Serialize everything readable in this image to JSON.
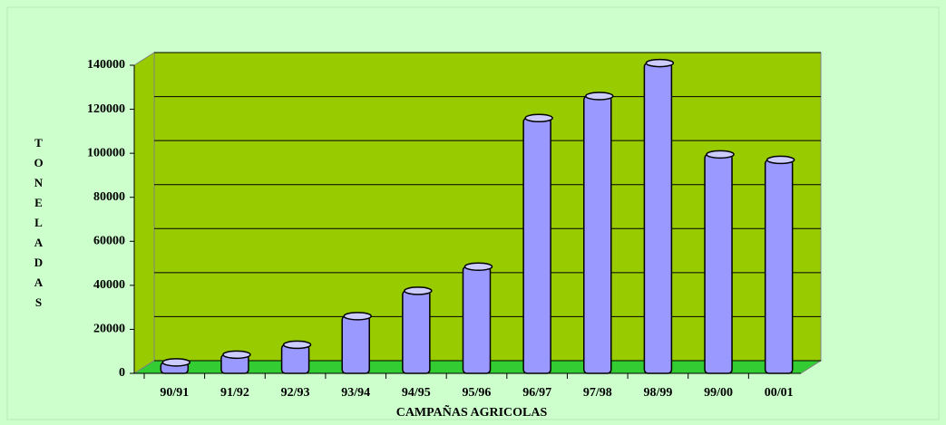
{
  "chart_data": {
    "type": "bar",
    "x_label": "CAMPAÑAS AGRICOLAS",
    "y_label": "TONELADAS",
    "categories": [
      "90/91",
      "91/92",
      "92/93",
      "93/94",
      "94/95",
      "95/96",
      "96/97",
      "97/98",
      "98/99",
      "99/00",
      "00/01"
    ],
    "values": [
      5000,
      8500,
      13000,
      26000,
      37500,
      48500,
      116000,
      126000,
      141000,
      99500,
      97000
    ],
    "color": "#9999ff",
    "ylim": [
      0,
      140000
    ],
    "yticks": [
      0,
      20000,
      40000,
      60000,
      80000,
      100000,
      120000,
      140000
    ],
    "grid": true
  }
}
